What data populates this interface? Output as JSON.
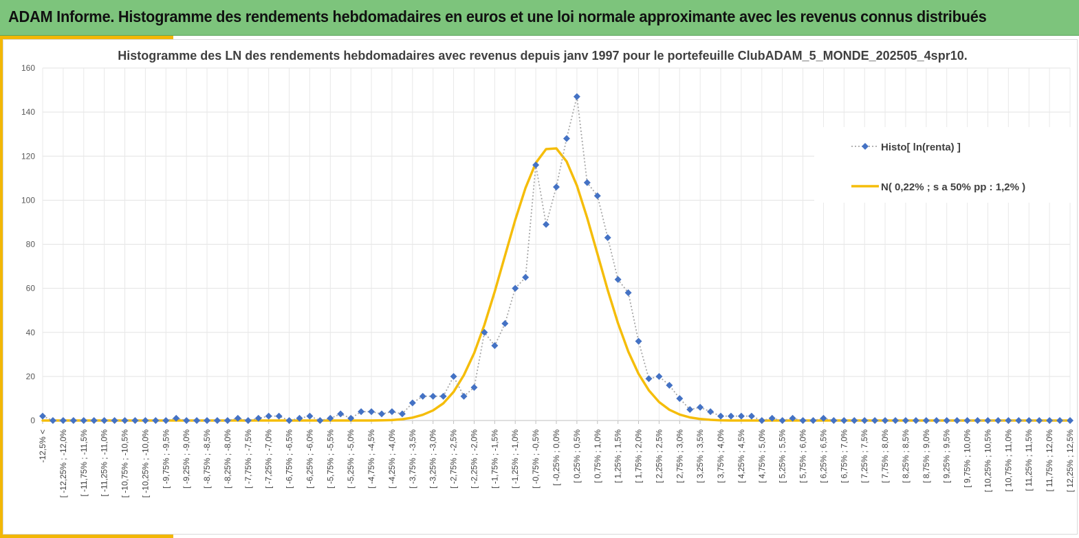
{
  "banner": {
    "title": "ADAM Informe. Histogramme des rendements hebdomadaires en euros et une loi normale approximante avec les revenus connus distribués"
  },
  "chart_data": {
    "type": "line",
    "title": "Histogramme des LN des rendements hebdomadaires avec revenus depuis janv 1997 pour le portefeuille ClubADAM_5_MONDE_202505_4spr10.",
    "xlabel": "",
    "ylabel": "",
    "ylim": [
      0,
      160
    ],
    "yticks": [
      0,
      20,
      40,
      60,
      80,
      100,
      120,
      140,
      160
    ],
    "grid": true,
    "legend_position": "right",
    "categories": [
      "-12,5% <",
      "[ -12,25% ; -12,0%",
      "[ -11,75% ; -11,5%",
      "[ -11,25% ; -11,0%",
      "[ -10,75% ; -10,5%",
      "[ -10,25% ; -10,0%",
      "[ -9,75% ; -9,5%",
      "[ -9,25% ; -9,0%",
      "[ -8,75% ; -8,5%",
      "[ -8,25% ; -8,0%",
      "[ -7,75% ; -7,5%",
      "[ -7,25% ; -7,0%",
      "[ -6,75% ; -6,5%",
      "[ -6,25% ; -6,0%",
      "[ -5,75% ; -5,5%",
      "[ -5,25% ; -5,0%",
      "[ -4,75% ; -4,5%",
      "[ -4,25% ; -4,0%",
      "[ -3,75% ; -3,5%",
      "[ -3,25% ; -3,0%",
      "[ -2,75% ; -2,5%",
      "[ -2,25% ; -2,0%",
      "[ -1,75% ; -1,5%",
      "[ -1,25% ; -1,0%",
      "[ -0,75% ; -0,5%",
      "[ -0,25% ; 0,0%",
      "[ 0,25% ; 0,5%",
      "[ 0,75% ; 1,0%",
      "[ 1,25% ; 1,5%",
      "[ 1,75% ; 2,0%",
      "[ 2,25% ; 2,5%",
      "[ 2,75% ; 3,0%",
      "[ 3,25% ; 3,5%",
      "[ 3,75% ; 4,0%",
      "[ 4,25% ; 4,5%",
      "[ 4,75% ; 5,0%",
      "[ 5,25% ; 5,5%",
      "[ 5,75% ; 6,0%",
      "[ 6,25% ; 6,5%",
      "[ 6,75% ; 7,0%",
      "[ 7,25% ; 7,5%",
      "[ 7,75% ; 8,0%",
      "[ 8,25% ; 8,5%",
      "[ 8,75% ; 9,0%",
      "[ 9,25% ; 9,5%",
      "[ 9,75% ; 10,0%",
      "[ 10,25% ; 10,5%",
      "[ 10,75% ; 11,0%",
      "[ 11,25% ; 11,5%",
      "[ 11,75% ; 12,0%",
      "[ 12,25% ; 12,5%"
    ],
    "x": [
      -12.5,
      -12.25,
      -12.0,
      -11.75,
      -11.5,
      -11.25,
      -11.0,
      -10.75,
      -10.5,
      -10.25,
      -10.0,
      -9.75,
      -9.5,
      -9.25,
      -9.0,
      -8.75,
      -8.5,
      -8.25,
      -8.0,
      -7.75,
      -7.5,
      -7.25,
      -7.0,
      -6.75,
      -6.5,
      -6.25,
      -6.0,
      -5.75,
      -5.5,
      -5.25,
      -5.0,
      -4.75,
      -4.5,
      -4.25,
      -4.0,
      -3.75,
      -3.5,
      -3.25,
      -3.0,
      -2.75,
      -2.5,
      -2.25,
      -2.0,
      -1.75,
      -1.5,
      -1.25,
      -1.0,
      -0.75,
      -0.5,
      -0.25,
      0.0,
      0.25,
      0.5,
      0.75,
      1.0,
      1.25,
      1.5,
      1.75,
      2.0,
      2.25,
      2.5,
      2.75,
      3.0,
      3.25,
      3.5,
      3.75,
      4.0,
      4.25,
      4.5,
      4.75,
      5.0,
      5.25,
      5.5,
      5.75,
      6.0,
      6.25,
      6.5,
      6.75,
      7.0,
      7.25,
      7.5,
      7.75,
      8.0,
      8.25,
      8.5,
      8.75,
      9.0,
      9.25,
      9.5,
      9.75,
      10.0,
      10.25,
      10.5,
      10.75,
      11.0,
      11.25,
      11.5,
      11.75,
      12.0,
      12.25,
      12.5
    ],
    "series": [
      {
        "name": "Histo[ ln(renta) ]",
        "color": "#4472c4",
        "style": "dotted-with-diamond-markers",
        "values": [
          2,
          0,
          0,
          0,
          0,
          0,
          0,
          0,
          0,
          0,
          0,
          0,
          0,
          1,
          0,
          0,
          0,
          0,
          0,
          1,
          0,
          1,
          2,
          2,
          0,
          1,
          2,
          0,
          1,
          3,
          1,
          4,
          4,
          3,
          4,
          3,
          8,
          11,
          11,
          11,
          20,
          11,
          15,
          40,
          34,
          44,
          60,
          65,
          116,
          89,
          106,
          128,
          147,
          108,
          102,
          83,
          64,
          58,
          36,
          19,
          20,
          16,
          10,
          5,
          6,
          4,
          2,
          2,
          2,
          2,
          0,
          1,
          0,
          1,
          0,
          0,
          1,
          0,
          0,
          0,
          0,
          0,
          0,
          0,
          0,
          0,
          0,
          0,
          0,
          0,
          0,
          0,
          0,
          0,
          0,
          0,
          0,
          0,
          0,
          0,
          0
        ]
      },
      {
        "name": "N( 0,22% ; s a 50% pp : 1,2% )",
        "color": "#f5bd0a",
        "style": "thick-solid-line",
        "values": [
          0,
          0,
          0,
          0,
          0,
          0,
          0,
          0,
          0,
          0,
          0,
          0,
          0,
          0,
          0,
          0,
          0,
          0,
          0,
          0,
          0,
          0,
          0,
          0,
          0,
          0,
          0,
          0,
          0,
          0,
          0,
          0,
          0,
          0.1,
          0.2,
          0.6,
          1.3,
          2.6,
          4.6,
          7.8,
          13,
          20.6,
          30.6,
          43.4,
          58.5,
          74.8,
          91,
          105.6,
          116.9,
          123.2,
          123.5,
          117.6,
          106.6,
          92,
          75.6,
          59.2,
          44.2,
          31.3,
          21.2,
          13.7,
          8.4,
          4.9,
          2.7,
          1.4,
          0.7,
          0.3,
          0.1,
          0,
          0,
          0,
          0,
          0,
          0,
          0,
          0,
          0,
          0,
          0,
          0,
          0,
          0,
          0,
          0,
          0,
          0,
          0,
          0,
          0,
          0,
          0,
          0,
          0,
          0,
          0,
          0,
          0,
          0,
          0,
          0,
          0,
          0
        ]
      }
    ]
  }
}
